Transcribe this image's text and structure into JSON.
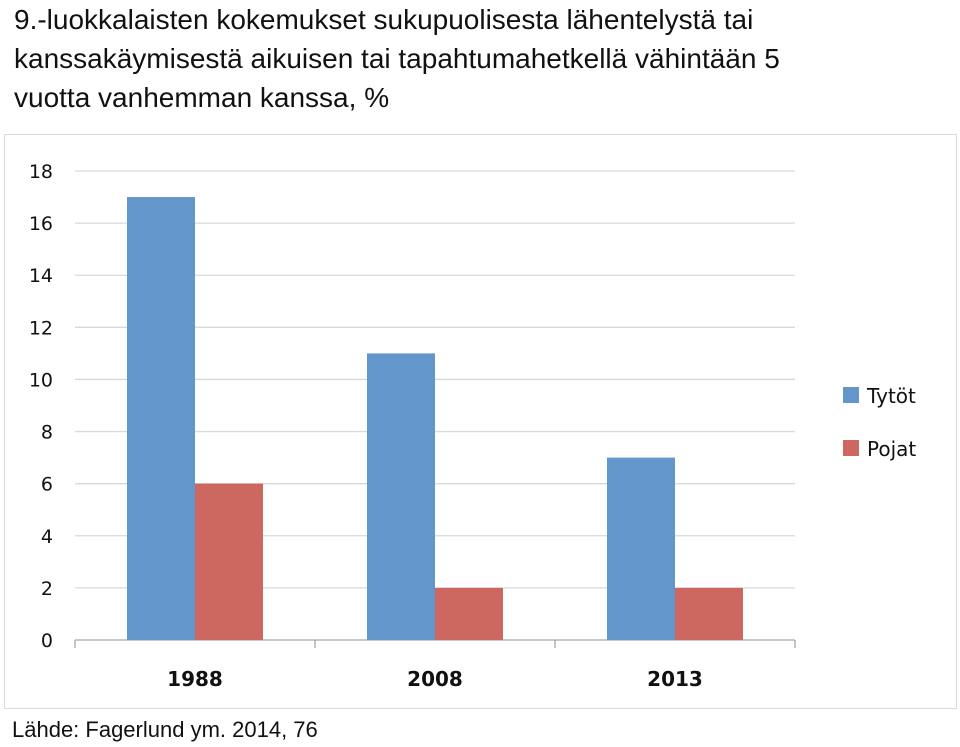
{
  "title_lines": [
    "9.-luokkalaisten kokemukset sukupuolisesta lähentelystä tai",
    "kanssakäymisestä aikuisen tai tapahtumahetkellä vähintään 5",
    "vuotta vanhemman kanssa, %"
  ],
  "source": "Lähde: Fagerlund ym. 2014, 76",
  "chart_data": {
    "type": "bar",
    "title": "",
    "xlabel": "",
    "ylabel": "",
    "categories": [
      "1988",
      "2008",
      "2013"
    ],
    "series": [
      {
        "name": "Tytöt",
        "values": [
          17,
          11,
          7
        ],
        "color": "#6396cb"
      },
      {
        "name": "Pojat",
        "values": [
          6,
          2,
          2
        ],
        "color": "#cd6860"
      }
    ],
    "ylim": [
      0,
      18
    ],
    "yticks": [
      "0",
      "2",
      "4",
      "6",
      "8",
      "10",
      "12",
      "14",
      "16",
      "18"
    ],
    "grid": true,
    "legend_position": "right"
  }
}
